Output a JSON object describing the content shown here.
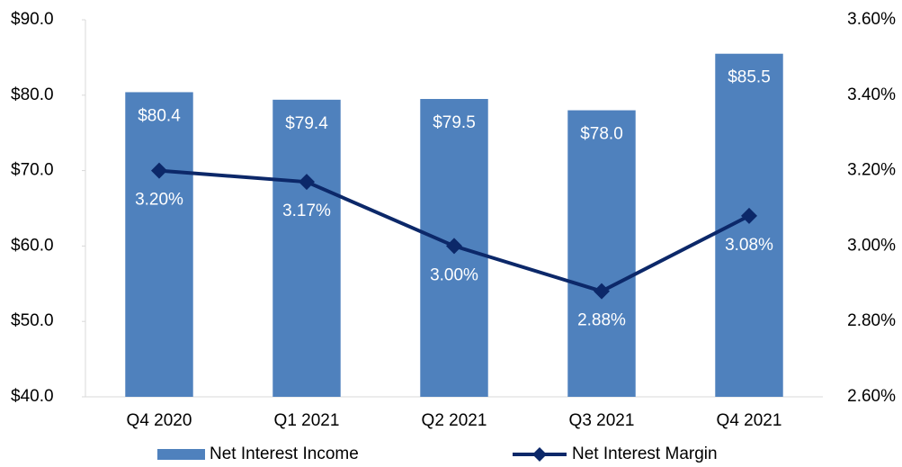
{
  "chart_data": {
    "type": "bar",
    "categories": [
      "Q4 2020",
      "Q1 2021",
      "Q2 2021",
      "Q3 2021",
      "Q4 2021"
    ],
    "series": [
      {
        "name": "Net Interest Income",
        "type": "bar",
        "color": "#4f81bd",
        "axis": "y",
        "values": [
          80.4,
          79.4,
          79.5,
          78.0,
          85.5
        ],
        "value_labels": [
          "$80.4",
          "$79.4",
          "$79.5",
          "$78.0",
          "$85.5"
        ]
      },
      {
        "name": "Net Interest Margin",
        "type": "line",
        "color": "#0c2869",
        "axis": "y2",
        "values": [
          3.2,
          3.17,
          3.0,
          2.88,
          3.08
        ],
        "value_labels": [
          "3.20%",
          "3.17%",
          "3.00%",
          "2.88%",
          "3.08%"
        ]
      }
    ],
    "ylim": [
      40,
      90
    ],
    "yticks": [
      {
        "value": 40,
        "label": "$40.0"
      },
      {
        "value": 50,
        "label": "$50.0"
      },
      {
        "value": 60,
        "label": "$60.0"
      },
      {
        "value": 70,
        "label": "$70.0"
      },
      {
        "value": 80,
        "label": "$80.0"
      },
      {
        "value": 90,
        "label": "$90.0"
      }
    ],
    "y2lim": [
      2.6,
      3.6
    ],
    "y2ticks": [
      {
        "value": 2.6,
        "label": "2.60%"
      },
      {
        "value": 2.8,
        "label": "2.80%"
      },
      {
        "value": 3.0,
        "label": "3.00%"
      },
      {
        "value": 3.2,
        "label": "3.20%"
      },
      {
        "value": 3.4,
        "label": "3.40%"
      },
      {
        "value": 3.6,
        "label": "3.60%"
      }
    ],
    "grid": false,
    "legend": "bottom"
  }
}
